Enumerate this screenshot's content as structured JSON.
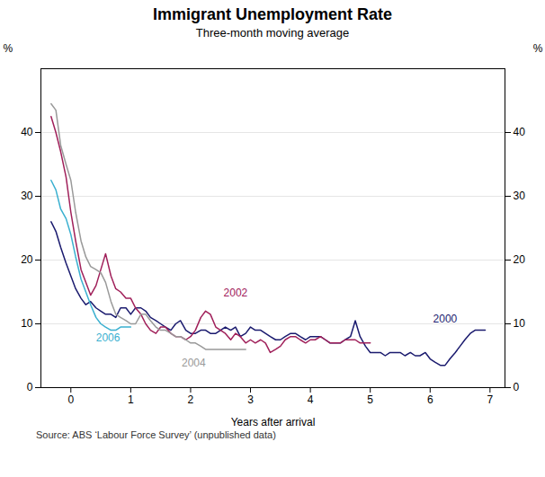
{
  "chart_data": {
    "type": "line",
    "title": "Immigrant Unemployment Rate",
    "subtitle": "Three-month moving average",
    "xlabel": "Years after arrival",
    "ylabel": "%",
    "y2label": "%",
    "source": "Source: ABS ‘Labour Force Survey’ (unpublished data)",
    "xlim": [
      -0.5,
      7.25
    ],
    "ylim": [
      0,
      50
    ],
    "y2lim": [
      0,
      50
    ],
    "xticks": [
      0,
      1,
      2,
      3,
      4,
      5,
      6,
      7
    ],
    "yticks": [
      0,
      10,
      20,
      30,
      40
    ],
    "y2ticks": [
      0,
      10,
      20,
      30,
      40
    ],
    "grid": "y",
    "series": [
      {
        "name": "2000",
        "color": "#1a1a6e",
        "x": [
          -0.33,
          -0.25,
          -0.17,
          -0.08,
          0.0,
          0.08,
          0.17,
          0.25,
          0.33,
          0.42,
          0.5,
          0.58,
          0.67,
          0.75,
          0.83,
          0.92,
          1.0,
          1.08,
          1.17,
          1.25,
          1.33,
          1.42,
          1.5,
          1.58,
          1.67,
          1.75,
          1.83,
          1.92,
          2.0,
          2.08,
          2.17,
          2.25,
          2.33,
          2.42,
          2.5,
          2.58,
          2.67,
          2.75,
          2.83,
          2.92,
          3.0,
          3.08,
          3.17,
          3.25,
          3.33,
          3.42,
          3.5,
          3.58,
          3.67,
          3.75,
          3.83,
          3.92,
          4.0,
          4.08,
          4.17,
          4.25,
          4.33,
          4.42,
          4.5,
          4.58,
          4.67,
          4.75,
          4.83,
          4.92,
          5.0,
          5.08,
          5.17,
          5.25,
          5.33,
          5.42,
          5.5,
          5.58,
          5.67,
          5.75,
          5.83,
          5.92,
          6.0,
          6.08,
          6.17,
          6.25,
          6.33,
          6.42,
          6.5,
          6.58,
          6.67,
          6.75,
          6.83,
          6.92
        ],
        "values": [
          26.0,
          24.5,
          22.0,
          19.5,
          17.5,
          15.5,
          14.0,
          13.0,
          13.5,
          12.5,
          12.0,
          11.5,
          11.5,
          11.0,
          12.5,
          12.5,
          11.5,
          12.5,
          12.5,
          12.0,
          11.0,
          10.5,
          10.0,
          9.5,
          9.0,
          10.0,
          10.5,
          9.0,
          8.5,
          8.5,
          9.0,
          9.0,
          8.5,
          8.5,
          9.0,
          9.5,
          9.0,
          9.5,
          8.0,
          8.5,
          9.5,
          9.0,
          9.0,
          8.5,
          8.0,
          7.5,
          7.5,
          8.0,
          8.5,
          8.5,
          8.0,
          7.5,
          8.0,
          8.0,
          8.0,
          7.5,
          7.0,
          7.0,
          7.0,
          7.5,
          8.0,
          10.5,
          8.0,
          6.5,
          5.5,
          5.5,
          5.5,
          5.0,
          5.5,
          5.5,
          5.5,
          5.0,
          5.5,
          5.0,
          5.0,
          5.5,
          4.5,
          4.0,
          3.5,
          3.5,
          4.5,
          5.5,
          6.5,
          7.5,
          8.5,
          9.0,
          9.0,
          9.0
        ]
      },
      {
        "name": "2002",
        "color": "#a0205a",
        "x": [
          -0.33,
          -0.25,
          -0.17,
          -0.08,
          0.0,
          0.08,
          0.17,
          0.25,
          0.33,
          0.42,
          0.5,
          0.58,
          0.67,
          0.75,
          0.83,
          0.92,
          1.0,
          1.08,
          1.17,
          1.25,
          1.33,
          1.42,
          1.5,
          1.58,
          1.67,
          1.75,
          1.83,
          1.92,
          2.0,
          2.08,
          2.17,
          2.25,
          2.33,
          2.42,
          2.5,
          2.58,
          2.67,
          2.75,
          2.83,
          2.92,
          3.0,
          3.08,
          3.17,
          3.25,
          3.33,
          3.42,
          3.5,
          3.58,
          3.67,
          3.75,
          3.83,
          3.92,
          4.0,
          4.08,
          4.17,
          4.25,
          4.33,
          4.42,
          4.5,
          4.58,
          4.67,
          4.75,
          4.83,
          4.92,
          5.0
        ],
        "values": [
          42.5,
          40.0,
          37.0,
          33.0,
          27.5,
          23.0,
          18.5,
          16.5,
          14.5,
          16.0,
          18.5,
          21.0,
          17.5,
          15.5,
          15.0,
          14.0,
          14.0,
          12.5,
          11.5,
          10.0,
          9.0,
          8.5,
          9.5,
          9.5,
          8.5,
          8.0,
          8.0,
          7.5,
          8.0,
          9.0,
          11.0,
          12.0,
          11.5,
          9.5,
          9.0,
          8.5,
          7.5,
          8.5,
          8.0,
          7.0,
          7.5,
          7.0,
          7.5,
          7.0,
          5.5,
          6.0,
          6.5,
          7.5,
          8.0,
          8.0,
          7.5,
          7.0,
          7.5,
          7.5,
          8.0,
          7.5,
          7.0,
          7.0,
          7.0,
          7.5,
          7.5,
          7.5,
          7.0,
          7.0,
          7.0
        ]
      },
      {
        "name": "2004",
        "color": "#999999",
        "x": [
          -0.33,
          -0.25,
          -0.17,
          -0.08,
          0.0,
          0.08,
          0.17,
          0.25,
          0.33,
          0.42,
          0.5,
          0.58,
          0.67,
          0.75,
          0.83,
          0.92,
          1.0,
          1.08,
          1.17,
          1.25,
          1.33,
          1.42,
          1.5,
          1.58,
          1.67,
          1.75,
          1.83,
          1.92,
          2.0,
          2.08,
          2.17,
          2.25,
          2.33,
          2.42,
          2.5,
          2.58,
          2.67,
          2.75,
          2.83,
          2.92
        ],
        "values": [
          44.5,
          43.5,
          38.0,
          35.0,
          32.5,
          27.5,
          23.0,
          20.5,
          19.0,
          18.5,
          18.0,
          16.5,
          13.5,
          11.5,
          11.0,
          10.5,
          10.0,
          10.0,
          11.5,
          11.5,
          10.5,
          9.5,
          9.0,
          9.0,
          8.5,
          8.0,
          8.0,
          7.5,
          7.0,
          7.0,
          6.5,
          6.0,
          6.0,
          6.0,
          6.0,
          6.0,
          6.0,
          6.0,
          6.0,
          6.0
        ]
      },
      {
        "name": "2006",
        "color": "#3ab0d0",
        "x": [
          -0.33,
          -0.25,
          -0.17,
          -0.08,
          0.0,
          0.08,
          0.17,
          0.25,
          0.33,
          0.42,
          0.5,
          0.58,
          0.67,
          0.75,
          0.83,
          0.92,
          1.0
        ],
        "values": [
          32.5,
          31.0,
          28.0,
          26.5,
          24.0,
          20.5,
          17.0,
          15.0,
          13.0,
          11.0,
          10.0,
          9.5,
          9.0,
          9.0,
          9.5,
          9.5,
          9.5
        ]
      }
    ],
    "annotations": [
      {
        "text": "2000",
        "x": 6.05,
        "y": 10.8,
        "color": "#1a1a6e"
      },
      {
        "text": "2002",
        "x": 2.55,
        "y": 14.8,
        "color": "#a0205a"
      },
      {
        "text": "2004",
        "x": 1.85,
        "y": 3.8,
        "color": "#999999"
      },
      {
        "text": "2006",
        "x": 0.42,
        "y": 7.8,
        "color": "#3ab0d0"
      }
    ]
  }
}
